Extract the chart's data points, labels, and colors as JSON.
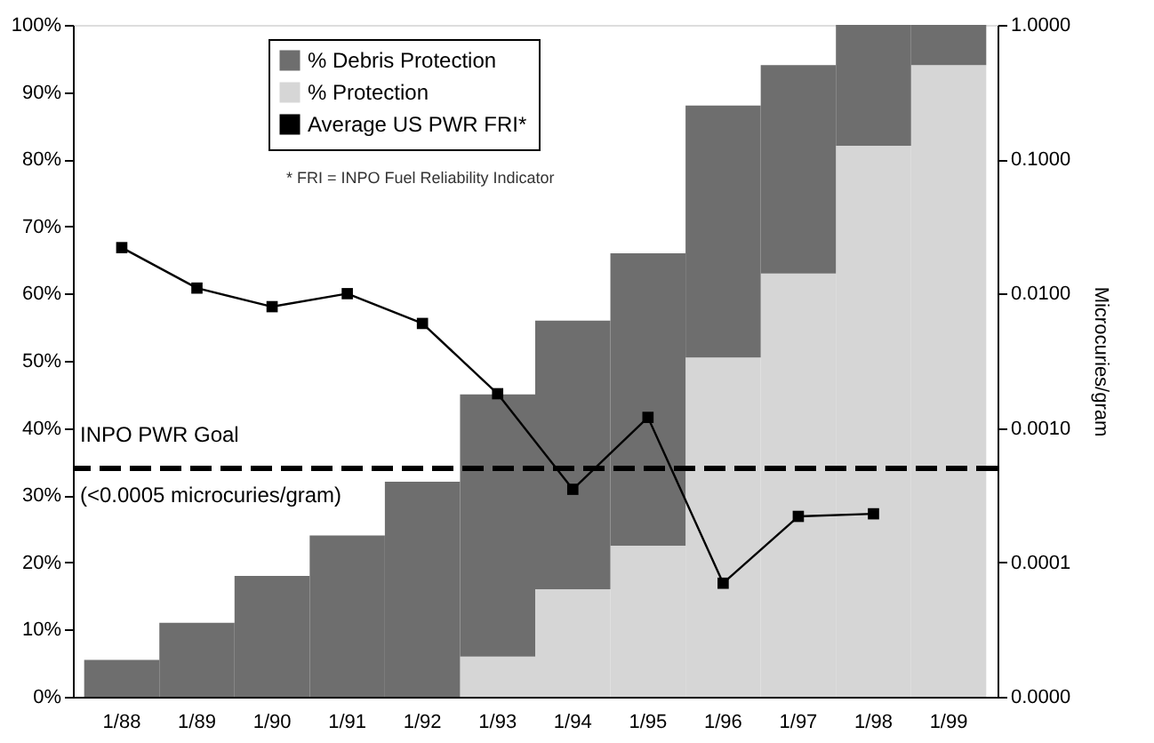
{
  "chart_data": {
    "type": "bar",
    "stacked": true,
    "categories": [
      "1/88",
      "1/89",
      "1/90",
      "1/91",
      "1/92",
      "1/93",
      "1/94",
      "1/95",
      "1/96",
      "1/97",
      "1/98",
      "1/99"
    ],
    "series": [
      {
        "name": "% Protection",
        "color": "#d6d6d6",
        "values": [
          null,
          null,
          null,
          null,
          null,
          6,
          16,
          22.5,
          50.5,
          63,
          82,
          94
        ]
      },
      {
        "name": "% Debris Protection",
        "color": "#6e6e6e",
        "values": [
          5.5,
          11,
          18,
          24,
          32,
          39,
          40,
          43.5,
          37.5,
          31,
          18,
          6
        ]
      },
      {
        "name": "Average US PWR FRI*",
        "type": "line",
        "axis": "y2",
        "color": "#000000",
        "marker": "square",
        "line_style": "solid",
        "values": [
          0.022,
          0.011,
          0.008,
          0.01,
          0.006,
          0.0018,
          0.00035,
          0.0012,
          7e-05,
          0.00022,
          0.00023,
          null
        ]
      }
    ],
    "ylim": [
      0,
      100
    ],
    "yticks": [
      {
        "value": 0,
        "label": "0%"
      },
      {
        "value": 10,
        "label": "10%"
      },
      {
        "value": 20,
        "label": "20%"
      },
      {
        "value": 30,
        "label": "30%"
      },
      {
        "value": 40,
        "label": "40%"
      },
      {
        "value": 50,
        "label": "50%"
      },
      {
        "value": 60,
        "label": "60%"
      },
      {
        "value": 70,
        "label": "70%"
      },
      {
        "value": 80,
        "label": "80%"
      },
      {
        "value": 90,
        "label": "90%"
      },
      {
        "value": 100,
        "label": "100%"
      }
    ],
    "log": "y2",
    "y2lim": [
      1e-05,
      1
    ],
    "y2ticks": [
      {
        "value": 1e-05,
        "label": "0.0000"
      },
      {
        "value": 0.0001,
        "label": "0.0001"
      },
      {
        "value": 0.001,
        "label": "0.0010"
      },
      {
        "value": 0.01,
        "label": "0.0100"
      },
      {
        "value": 0.1,
        "label": "0.1000"
      },
      {
        "value": 1,
        "label": "1.0000"
      }
    ],
    "y2label": "Microcuries/gram",
    "ref_lines": [
      {
        "axis": "y2",
        "value": 0.0005,
        "label": "INPO PWR Goal",
        "color": "#000000",
        "line_style": "dashed"
      }
    ],
    "annotations": [
      "(<0.0005 microcuries/gram)",
      "* FRI = INPO Fuel Reliability Indicator"
    ],
    "legend": "top left",
    "grid": false
  }
}
